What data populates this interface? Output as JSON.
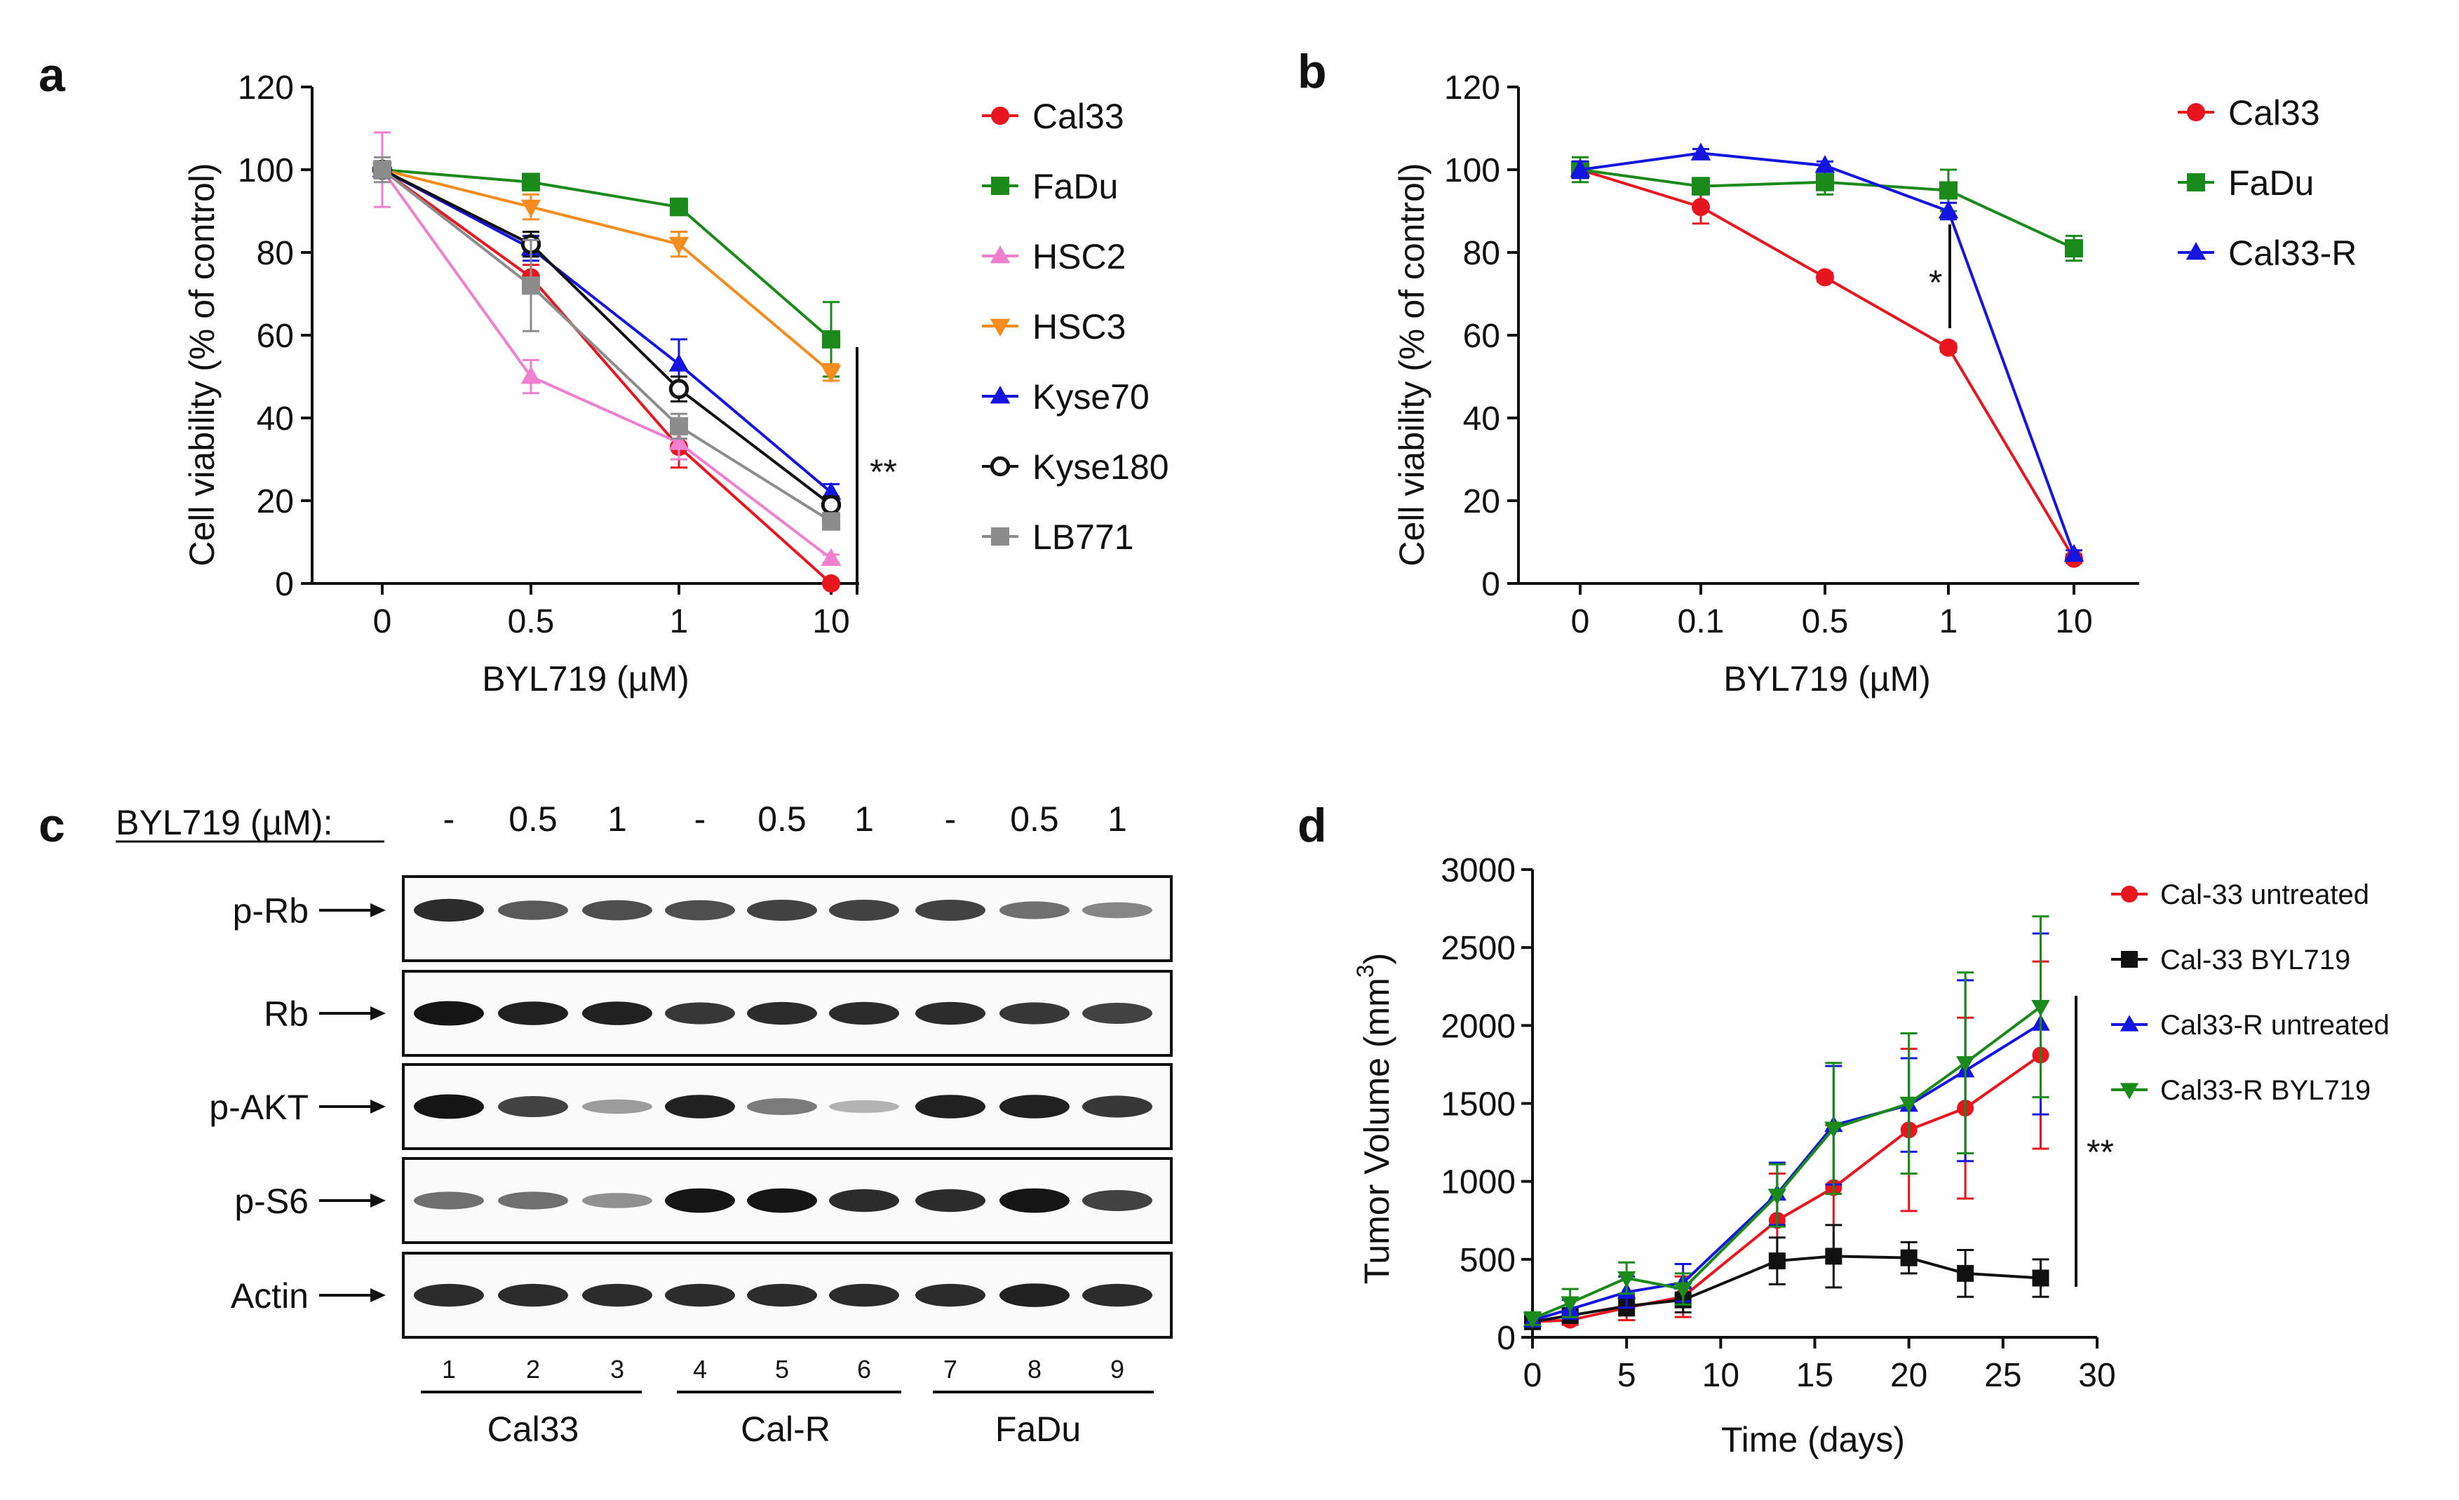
{
  "panels": [
    {
      "label": "a",
      "chart_data": {
        "type": "line",
        "categories": [
          "0",
          "0.5",
          "1",
          "10"
        ],
        "xlabel": "BYL719 (µM)",
        "ylabel": "Cell viability (% of control)",
        "ylim": [
          0,
          120
        ],
        "yticks": [
          0,
          20,
          40,
          60,
          80,
          100,
          120
        ],
        "series": [
          {
            "name": "Cal33",
            "color": "#e8171f",
            "marker": "circle",
            "values": [
              100,
              74,
              33,
              0
            ],
            "err": [
              2,
              3,
              5,
              0.5
            ]
          },
          {
            "name": "FaDu",
            "color": "#1a8a1a",
            "marker": "square",
            "values": [
              100,
              97,
              91,
              59
            ],
            "err": [
              2,
              2,
              2,
              9
            ]
          },
          {
            "name": "HSC2",
            "color": "#f07fd0",
            "marker": "triangle-up",
            "values": [
              100,
              50,
              34,
              6
            ],
            "err": [
              9,
              4,
              4,
              1
            ]
          },
          {
            "name": "HSC3",
            "color": "#f58c1e",
            "marker": "triangle-down",
            "values": [
              100,
              91,
              82,
              51
            ],
            "err": [
              2,
              3,
              3,
              2
            ]
          },
          {
            "name": "Kyse70",
            "color": "#1515e0",
            "marker": "triangle-up",
            "values": [
              100,
              81,
              53,
              22
            ],
            "err": [
              2,
              3,
              6,
              2
            ]
          },
          {
            "name": "Kyse180",
            "color": "#111111",
            "marker": "circle-open",
            "values": [
              100,
              82,
              47,
              19
            ],
            "err": [
              2,
              3,
              3,
              2
            ]
          },
          {
            "name": "LB771",
            "color": "#8c8c8c",
            "marker": "square",
            "values": [
              100,
              72,
              38,
              15
            ],
            "err": [
              3,
              11,
              3,
              2
            ]
          }
        ],
        "annotation": "**"
      }
    },
    {
      "label": "b",
      "chart_data": {
        "type": "line",
        "categories": [
          "0",
          "0.1",
          "0.5",
          "1",
          "10"
        ],
        "xlabel": "BYL719 (µM)",
        "ylabel": "Cell viability (% of control)",
        "ylim": [
          0,
          120
        ],
        "yticks": [
          0,
          20,
          40,
          60,
          80,
          100,
          120
        ],
        "series": [
          {
            "name": "Cal33",
            "color": "#e8171f",
            "marker": "circle",
            "values": [
              100,
              91,
              74,
              57,
              6
            ],
            "err": [
              2,
              4,
              1,
              1,
              1
            ]
          },
          {
            "name": "FaDu",
            "color": "#1a8a1a",
            "marker": "square",
            "values": [
              100,
              96,
              97,
              95,
              81
            ],
            "err": [
              3,
              2,
              3,
              5,
              3
            ]
          },
          {
            "name": "Cal33-R",
            "color": "#1515e0",
            "marker": "triangle-up",
            "values": [
              100,
              104,
              101,
              90,
              7
            ],
            "err": [
              2,
              1,
              1,
              2,
              1
            ]
          }
        ],
        "annotation": "*"
      }
    },
    {
      "label": "c",
      "blot": {
        "treatment_label": "BYL719 (µM):",
        "doses": [
          "-",
          "0.5",
          "1",
          "-",
          "0.5",
          "1",
          "-",
          "0.5",
          "1"
        ],
        "lanes": [
          "1",
          "2",
          "3",
          "4",
          "5",
          "6",
          "7",
          "8",
          "9"
        ],
        "rows": [
          {
            "name": "p-Rb",
            "intensity": [
              0.85,
              0.65,
              0.7,
              0.7,
              0.75,
              0.75,
              0.75,
              0.55,
              0.45
            ]
          },
          {
            "name": "Rb",
            "intensity": [
              0.95,
              0.9,
              0.9,
              0.8,
              0.85,
              0.85,
              0.85,
              0.8,
              0.75
            ]
          },
          {
            "name": "p-AKT",
            "intensity": [
              0.95,
              0.75,
              0.35,
              0.9,
              0.5,
              0.25,
              0.9,
              0.9,
              0.8
            ]
          },
          {
            "name": "p-S6",
            "intensity": [
              0.55,
              0.55,
              0.4,
              0.95,
              0.95,
              0.85,
              0.85,
              0.95,
              0.75
            ]
          },
          {
            "name": "Actin",
            "intensity": [
              0.85,
              0.85,
              0.85,
              0.85,
              0.85,
              0.85,
              0.85,
              0.9,
              0.85
            ]
          }
        ],
        "groups": [
          "Cal33",
          "Cal-R",
          "FaDu"
        ]
      }
    },
    {
      "label": "d",
      "chart_data": {
        "type": "line",
        "xlabel": "Time (days)",
        "ylabel_main": "Tumor Volume (mm",
        "ylabel_sup": "3",
        "ylabel_close": ")",
        "xlim": [
          0,
          30
        ],
        "xticks": [
          0,
          5,
          10,
          15,
          20,
          25,
          30
        ],
        "ylim": [
          0,
          3000
        ],
        "yticks": [
          0,
          500,
          1000,
          1500,
          2000,
          2500,
          3000
        ],
        "series": [
          {
            "name": "Cal-33 untreated",
            "color": "#e8171f",
            "marker": "circle",
            "x": [
              0,
              2,
              5,
              8,
              13,
              16,
              20,
              23,
              27
            ],
            "y": [
              100,
              110,
              190,
              260,
              750,
              960,
              1330,
              1470,
              1810
            ],
            "err": [
              30,
              30,
              80,
              130,
              300,
              400,
              520,
              580,
              600
            ]
          },
          {
            "name": "Cal-33 BYL719",
            "color": "#111111",
            "marker": "square",
            "x": [
              0,
              2,
              5,
              8,
              13,
              16,
              20,
              23,
              27
            ],
            "y": [
              100,
              140,
              200,
              240,
              490,
              520,
              510,
              410,
              380
            ],
            "err": [
              30,
              40,
              60,
              80,
              150,
              200,
              100,
              150,
              120
            ]
          },
          {
            "name": "Cal33-R untreated",
            "color": "#1515e0",
            "marker": "triangle-up",
            "x": [
              0,
              2,
              5,
              8,
              13,
              16,
              20,
              23,
              27
            ],
            "y": [
              110,
              180,
              290,
              350,
              920,
              1360,
              1490,
              1710,
              2010
            ],
            "err": [
              40,
              60,
              100,
              120,
              200,
              380,
              300,
              580,
              580
            ]
          },
          {
            "name": "Cal33-R BYL719",
            "color": "#1a8a1a",
            "marker": "triangle-down",
            "x": [
              0,
              2,
              5,
              8,
              13,
              16,
              20,
              23,
              27
            ],
            "y": [
              120,
              220,
              380,
              310,
              910,
              1340,
              1500,
              1760,
              2120
            ],
            "err": [
              40,
              90,
              100,
              100,
              200,
              420,
              450,
              580,
              580
            ]
          }
        ],
        "annotation": "**"
      }
    }
  ]
}
